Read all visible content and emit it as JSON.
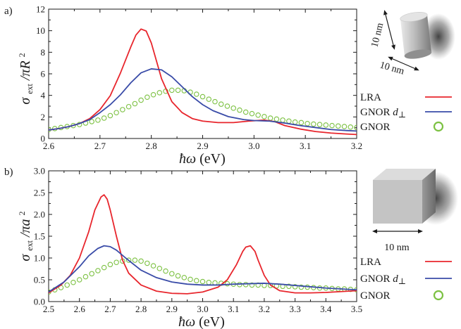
{
  "chart_data": [
    {
      "type": "line",
      "panel": "a)",
      "xlabel_main": "ħω",
      "xlabel_unit": "(eV)",
      "ylabel_main": "σ",
      "ylabel_sub": "ext",
      "ylabel_rest": "/πR",
      "ylabel_sup": "2",
      "xlim": [
        2.6,
        3.2
      ],
      "ylim": [
        0,
        13
      ],
      "xticks": [
        "2.6",
        "2.7",
        "2.8",
        "2.9",
        "3.0",
        "3.1",
        "3.2"
      ],
      "yticks": [
        "0",
        "2",
        "4",
        "6",
        "8",
        "10",
        "12"
      ],
      "grid": false,
      "legend_position": "right",
      "series": [
        {
          "name": "LRA",
          "color": "#e8262d",
          "style": "line",
          "x": [
            2.6,
            2.62,
            2.64,
            2.66,
            2.68,
            2.7,
            2.72,
            2.74,
            2.76,
            2.77,
            2.78,
            2.79,
            2.8,
            2.81,
            2.82,
            2.84,
            2.86,
            2.88,
            2.9,
            2.93,
            2.96,
            2.99,
            3.02,
            3.04,
            3.06,
            3.09,
            3.12,
            3.15,
            3.18,
            3.2
          ],
          "y": [
            0.85,
            1.0,
            1.2,
            1.5,
            2.0,
            2.9,
            4.3,
            6.6,
            9.2,
            10.4,
            11.0,
            10.8,
            9.6,
            7.8,
            6.0,
            3.7,
            2.6,
            2.0,
            1.75,
            1.6,
            1.6,
            1.75,
            1.85,
            1.7,
            1.3,
            0.95,
            0.7,
            0.55,
            0.45,
            0.4
          ]
        },
        {
          "name": "GNOR d⊥",
          "color": "#3a4ca8",
          "style": "line",
          "x": [
            2.6,
            2.62,
            2.64,
            2.66,
            2.68,
            2.7,
            2.72,
            2.74,
            2.76,
            2.78,
            2.8,
            2.82,
            2.84,
            2.86,
            2.88,
            2.9,
            2.92,
            2.95,
            2.98,
            3.0,
            3.03,
            3.06,
            3.09,
            3.12,
            3.15,
            3.18,
            3.2
          ],
          "y": [
            0.85,
            1.0,
            1.2,
            1.5,
            1.9,
            2.6,
            3.4,
            4.4,
            5.6,
            6.6,
            7.0,
            6.9,
            6.2,
            5.2,
            4.2,
            3.4,
            2.8,
            2.2,
            1.9,
            1.8,
            1.75,
            1.55,
            1.3,
            1.1,
            0.9,
            0.8,
            0.75
          ]
        },
        {
          "name": "GNOR",
          "color": "#7cc142",
          "style": "circles",
          "x": [
            2.6,
            2.612,
            2.624,
            2.636,
            2.648,
            2.66,
            2.672,
            2.684,
            2.696,
            2.708,
            2.72,
            2.732,
            2.744,
            2.756,
            2.768,
            2.78,
            2.792,
            2.804,
            2.816,
            2.828,
            2.84,
            2.852,
            2.864,
            2.876,
            2.888,
            2.9,
            2.912,
            2.924,
            2.936,
            2.948,
            2.96,
            2.972,
            2.984,
            2.996,
            3.008,
            3.02,
            3.032,
            3.044,
            3.056,
            3.068,
            3.08,
            3.092,
            3.104,
            3.116,
            3.128,
            3.14,
            3.152,
            3.164,
            3.176,
            3.188,
            3.2
          ],
          "y": [
            0.9,
            1.0,
            1.1,
            1.2,
            1.3,
            1.4,
            1.55,
            1.7,
            1.85,
            2.05,
            2.3,
            2.6,
            2.9,
            3.2,
            3.5,
            3.85,
            4.15,
            4.4,
            4.6,
            4.75,
            4.85,
            4.85,
            4.8,
            4.65,
            4.45,
            4.2,
            3.95,
            3.7,
            3.45,
            3.25,
            3.05,
            2.85,
            2.65,
            2.5,
            2.35,
            2.2,
            2.05,
            1.95,
            1.85,
            1.75,
            1.65,
            1.6,
            1.5,
            1.45,
            1.4,
            1.35,
            1.3,
            1.25,
            1.2,
            1.15,
            1.1
          ]
        }
      ]
    },
    {
      "type": "line",
      "panel": "b)",
      "xlabel_main": "ħω",
      "xlabel_unit": "(eV)",
      "ylabel_main": "σ",
      "ylabel_sub": "ext",
      "ylabel_rest": "/πa",
      "ylabel_sup": "2",
      "xlim": [
        2.5,
        3.5
      ],
      "ylim": [
        0,
        3.0
      ],
      "xticks": [
        "2.5",
        "2.6",
        "2.7",
        "2.8",
        "2.9",
        "3.0",
        "3.1",
        "3.2",
        "3.3",
        "3.4",
        "3.5"
      ],
      "yticks": [
        "0.0",
        "0.5",
        "1.0",
        "1.5",
        "2.0",
        "2.5",
        "3.0"
      ],
      "grid": false,
      "legend_position": "right",
      "series": [
        {
          "name": "LRA",
          "color": "#e8262d",
          "style": "line",
          "x": [
            2.5,
            2.54,
            2.57,
            2.6,
            2.63,
            2.65,
            2.67,
            2.68,
            2.69,
            2.7,
            2.72,
            2.74,
            2.76,
            2.8,
            2.85,
            2.9,
            2.95,
            3.0,
            3.05,
            3.08,
            3.11,
            3.13,
            3.14,
            3.155,
            3.17,
            3.18,
            3.2,
            3.22,
            3.25,
            3.3,
            3.35,
            3.4,
            3.45,
            3.5
          ],
          "y": [
            0.2,
            0.38,
            0.6,
            1.0,
            1.6,
            2.1,
            2.4,
            2.45,
            2.35,
            2.1,
            1.5,
            0.95,
            0.65,
            0.38,
            0.24,
            0.19,
            0.18,
            0.22,
            0.33,
            0.5,
            0.85,
            1.15,
            1.25,
            1.28,
            1.15,
            0.95,
            0.6,
            0.38,
            0.25,
            0.2,
            0.2,
            0.21,
            0.23,
            0.25
          ]
        },
        {
          "name": "GNOR d⊥",
          "color": "#3a4ca8",
          "style": "line",
          "x": [
            2.5,
            2.55,
            2.6,
            2.63,
            2.66,
            2.68,
            2.7,
            2.72,
            2.75,
            2.8,
            2.85,
            2.9,
            2.95,
            3.0,
            3.05,
            3.1,
            3.15,
            3.2,
            3.25,
            3.3,
            3.35,
            3.4,
            3.45,
            3.5
          ],
          "y": [
            0.22,
            0.45,
            0.8,
            1.05,
            1.22,
            1.28,
            1.26,
            1.18,
            1.0,
            0.72,
            0.55,
            0.45,
            0.4,
            0.38,
            0.38,
            0.4,
            0.41,
            0.42,
            0.4,
            0.37,
            0.34,
            0.31,
            0.29,
            0.27
          ]
        },
        {
          "name": "GNOR",
          "color": "#7cc142",
          "style": "circles",
          "x": [
            2.5,
            2.52,
            2.54,
            2.56,
            2.58,
            2.6,
            2.62,
            2.64,
            2.66,
            2.68,
            2.7,
            2.72,
            2.74,
            2.76,
            2.78,
            2.8,
            2.82,
            2.84,
            2.86,
            2.88,
            2.9,
            2.92,
            2.94,
            2.96,
            2.98,
            3.0,
            3.02,
            3.04,
            3.06,
            3.08,
            3.1,
            3.12,
            3.14,
            3.16,
            3.18,
            3.2,
            3.22,
            3.24,
            3.26,
            3.28,
            3.3,
            3.32,
            3.34,
            3.36,
            3.38,
            3.4,
            3.42,
            3.44,
            3.46,
            3.48,
            3.5
          ],
          "y": [
            0.22,
            0.27,
            0.32,
            0.38,
            0.44,
            0.5,
            0.57,
            0.64,
            0.71,
            0.78,
            0.85,
            0.9,
            0.93,
            0.95,
            0.95,
            0.93,
            0.88,
            0.82,
            0.76,
            0.7,
            0.64,
            0.59,
            0.55,
            0.51,
            0.48,
            0.46,
            0.44,
            0.43,
            0.42,
            0.41,
            0.4,
            0.39,
            0.39,
            0.38,
            0.38,
            0.37,
            0.37,
            0.36,
            0.35,
            0.35,
            0.34,
            0.33,
            0.33,
            0.32,
            0.31,
            0.31,
            0.3,
            0.29,
            0.29,
            0.28,
            0.27
          ]
        }
      ]
    }
  ],
  "insets": [
    {
      "shape": "cylinder",
      "height_label": "10 nm",
      "width_label": "10 nm"
    },
    {
      "shape": "cube",
      "edge_label": "10 nm"
    }
  ]
}
